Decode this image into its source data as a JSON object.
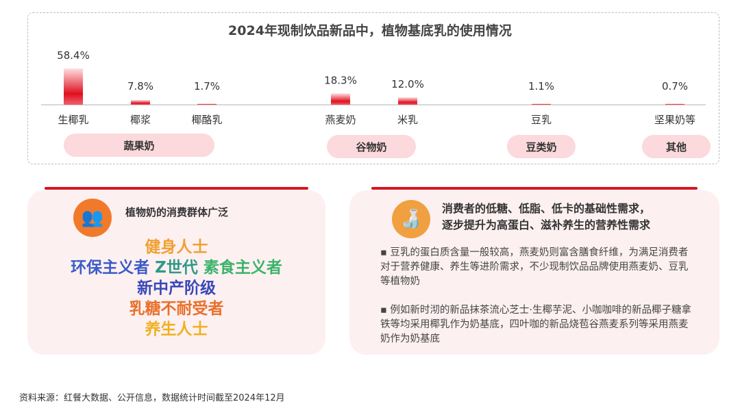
{
  "chart_data": {
    "type": "bar",
    "title": "2024年现制饮品新品中，植物基底乳的使用情况",
    "categories": [
      "生椰乳",
      "椰浆",
      "椰酪乳",
      "燕麦奶",
      "米乳",
      "豆乳",
      "坚果奶等"
    ],
    "values": [
      58.4,
      7.8,
      1.7,
      18.3,
      12.0,
      1.1,
      0.7
    ],
    "value_labels": [
      "58.4%",
      "7.8%",
      "1.7%",
      "18.3%",
      "12.0%",
      "1.1%",
      "0.7%"
    ],
    "groups": [
      {
        "label": "蔬果奶",
        "members": [
          "生椰乳",
          "椰浆",
          "椰酪乳"
        ]
      },
      {
        "label": "谷物奶",
        "members": [
          "燕麦奶",
          "米乳"
        ]
      },
      {
        "label": "豆类奶",
        "members": [
          "豆乳"
        ]
      },
      {
        "label": "其他",
        "members": [
          "坚果奶等"
        ]
      }
    ],
    "ylabel": "",
    "xlabel": "",
    "ylim": [
      0,
      60
    ],
    "grid": false,
    "bar_color": "#e0101e"
  },
  "left_panel": {
    "title": "植物奶的消费群体广泛",
    "words": [
      {
        "text": "健身人士",
        "color": "#f0a030"
      },
      {
        "text": "环保主义者",
        "color": "#3b5bc8"
      },
      {
        "text": "Z世代",
        "color": "#2e9a86"
      },
      {
        "text": "素食主义者",
        "color": "#3bb36a"
      },
      {
        "text": "新中产阶级",
        "color": "#3a48b8"
      },
      {
        "text": "乳糖不耐受者",
        "color": "#e8702a"
      },
      {
        "text": "养生人士",
        "color": "#f0b020"
      }
    ]
  },
  "right_panel": {
    "title_line1": "消费者的低糖、低脂、低卡的基础性需求，",
    "title_line2": "逐步提升为高蛋白、滋补养生的营养性需求",
    "bullets": [
      "▪ 豆乳的蛋白质含量一般较高，燕麦奶则富含膳食纤维，为满足消费者对于营养健康、养生等进阶需求，不少现制饮品品牌使用燕麦奶、豆乳等植物奶",
      "▪ 例如新时沏的新品抹茶流心芝士·生椰芋泥、小咖咖啡的新品椰子糖拿铁等均采用椰乳作为奶基底，四叶咖的新品烧苞谷燕麦系列等采用燕麦奶作为奶基底"
    ]
  },
  "source": "资料来源：红餐大数据、公开信息，数据统计时间截至2024年12月"
}
